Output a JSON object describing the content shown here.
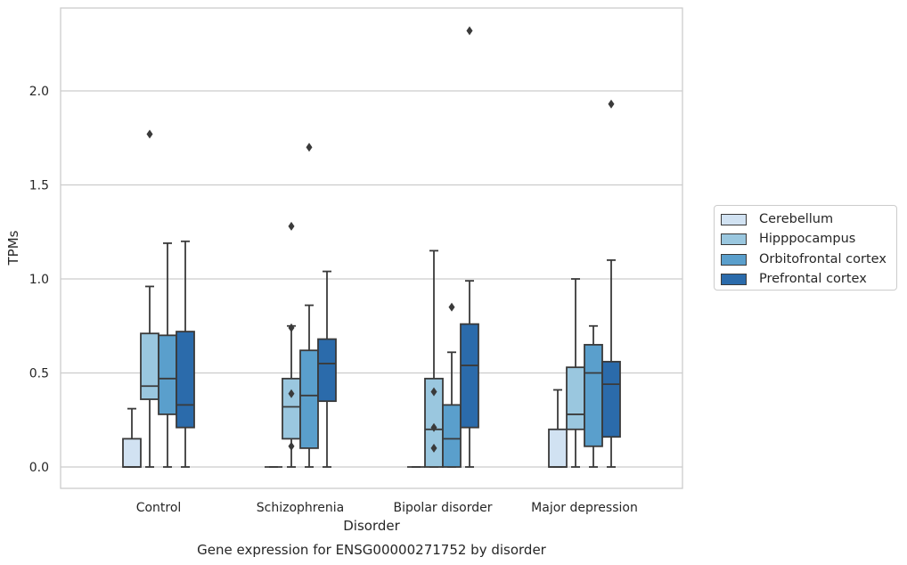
{
  "chart_data": {
    "type": "boxplot",
    "title": "Gene expression for ENSG00000271752 by disorder",
    "xlabel": "Disorder",
    "ylabel": "TPMs",
    "ylim": [
      -0.11,
      2.45
    ],
    "yticks": [
      0.0,
      0.5,
      1.0,
      1.5,
      2.0
    ],
    "ytick_labels": [
      "0.0",
      "0.5",
      "1.0",
      "1.5",
      "2.0"
    ],
    "grid": "horizontal",
    "legend_position": "right, outside",
    "categories": [
      "Control",
      "Schizophrenia",
      "Bipolar disorder",
      "Major depression"
    ],
    "series": [
      {
        "name": "Cerebellum",
        "color": "#d1e2f2",
        "boxes": [
          {
            "whislo": 0.0,
            "q1": 0.0,
            "med": 0.0,
            "q3": 0.15,
            "whishi": 0.31,
            "fliers": []
          },
          {
            "whislo": 0.0,
            "q1": 0.0,
            "med": 0.0,
            "q3": 0.0,
            "whishi": 0.0,
            "fliers": []
          },
          {
            "whislo": 0.0,
            "q1": 0.0,
            "med": 0.0,
            "q3": 0.0,
            "whishi": 0.0,
            "fliers": []
          },
          {
            "whislo": 0.0,
            "q1": 0.0,
            "med": 0.0,
            "q3": 0.2,
            "whishi": 0.41,
            "fliers": []
          }
        ]
      },
      {
        "name": "Hipppocampus",
        "color": "#9ac7df",
        "boxes": [
          {
            "whislo": 0.0,
            "q1": 0.36,
            "med": 0.43,
            "q3": 0.71,
            "whishi": 0.96,
            "fliers": [
              1.77
            ]
          },
          {
            "whislo": 0.0,
            "q1": 0.15,
            "med": 0.32,
            "q3": 0.47,
            "whishi": 0.75,
            "fliers": [
              0.74,
              0.39,
              0.11,
              1.28
            ]
          },
          {
            "whislo": 0.0,
            "q1": 0.0,
            "med": 0.2,
            "q3": 0.47,
            "whishi": 1.15,
            "fliers": [
              0.4,
              0.21,
              0.1
            ]
          },
          {
            "whislo": 0.0,
            "q1": 0.2,
            "med": 0.28,
            "q3": 0.53,
            "whishi": 1.0,
            "fliers": []
          }
        ]
      },
      {
        "name": "Orbitofrontal cortex",
        "color": "#5a9fcc",
        "boxes": [
          {
            "whislo": 0.0,
            "q1": 0.28,
            "med": 0.47,
            "q3": 0.7,
            "whishi": 1.19,
            "fliers": []
          },
          {
            "whislo": 0.0,
            "q1": 0.1,
            "med": 0.38,
            "q3": 0.62,
            "whishi": 0.86,
            "fliers": [
              1.7
            ]
          },
          {
            "whislo": 0.0,
            "q1": 0.0,
            "med": 0.15,
            "q3": 0.33,
            "whishi": 0.61,
            "fliers": [
              0.85
            ]
          },
          {
            "whislo": 0.0,
            "q1": 0.11,
            "med": 0.5,
            "q3": 0.65,
            "whishi": 0.75,
            "fliers": []
          }
        ]
      },
      {
        "name": "Prefrontal cortex",
        "color": "#2b6bab",
        "boxes": [
          {
            "whislo": 0.0,
            "q1": 0.21,
            "med": 0.33,
            "q3": 0.72,
            "whishi": 1.2,
            "fliers": []
          },
          {
            "whislo": 0.0,
            "q1": 0.35,
            "med": 0.55,
            "q3": 0.68,
            "whishi": 1.04,
            "fliers": []
          },
          {
            "whislo": 0.0,
            "q1": 0.21,
            "med": 0.54,
            "q3": 0.76,
            "whishi": 0.99,
            "fliers": [
              2.32
            ]
          },
          {
            "whislo": 0.0,
            "q1": 0.16,
            "med": 0.44,
            "q3": 0.56,
            "whishi": 1.1,
            "fliers": [
              1.93
            ]
          }
        ]
      }
    ]
  }
}
